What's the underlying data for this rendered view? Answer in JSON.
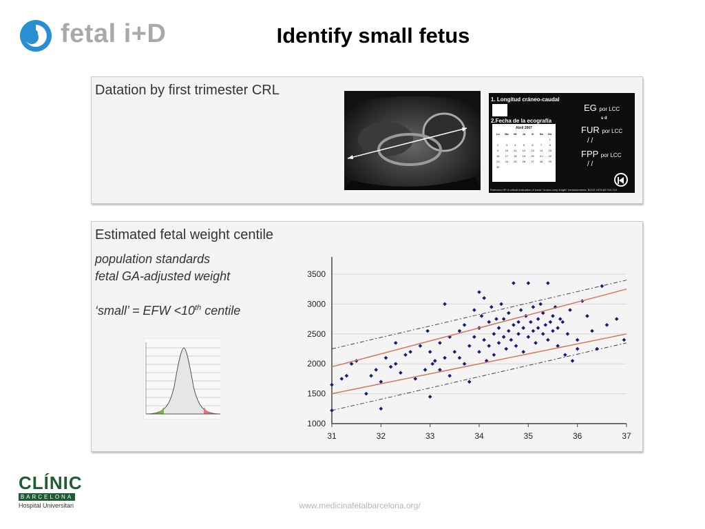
{
  "header": {
    "brand_text": "fetal i+D",
    "title": "Identify small fetus"
  },
  "panel1": {
    "heading": "Datation by first trimester CRL",
    "calculator": {
      "field1": "1. Longitud  cráneo-caudal",
      "field2": "2.Fecha de la ecografía",
      "calendar_month": "Abril 2007",
      "weekdays": [
        "Lu",
        "Ma",
        "Mi",
        "Ju",
        "Vi",
        "Sa",
        "Do"
      ],
      "days": [
        "",
        "",
        "",
        "",
        "",
        "",
        "1",
        "2",
        "3",
        "4",
        "5",
        "6",
        "7",
        "8",
        "9",
        "10",
        "11",
        "12",
        "13",
        "14",
        "15",
        "16",
        "17",
        "18",
        "19",
        "20",
        "21",
        "22",
        "23",
        "24",
        "25",
        "26",
        "27",
        "28",
        "29",
        "30"
      ],
      "eg_label": "EG",
      "eg_unit": "por LCC",
      "s_d": "s      d",
      "fur_label": "FUR",
      "fur_unit": "por LCC",
      "fur_value": "/     /",
      "fpp_label": "FPP",
      "fpp_unit": "por LCC",
      "fpp_value": "/     /",
      "reference": "Robinson HP. A critical evaluation of sonar \"crown-rump length\" measurements. BJOG 1975;82:702-710."
    }
  },
  "panel2": {
    "heading": "Estimated fetal weight centile",
    "line1": "population standards",
    "line2": "fetal GA-adjusted weight",
    "line3_prefix": "‘small’ = EFW <10",
    "line3_sup": "th",
    "line3_suffix": " centile"
  },
  "chart_data": {
    "type": "scatter",
    "xlim": [
      31,
      37
    ],
    "ylim": [
      1000,
      3500
    ],
    "x_ticks": [
      "31",
      "32",
      "33",
      "34",
      "35",
      "36",
      "37"
    ],
    "y_ticks": [
      "1000",
      "1500",
      "2000",
      "2500",
      "3000",
      "3500"
    ],
    "grid": "horizontal",
    "colors": {
      "points": "#1a1a7a",
      "centile_lines": "#d4785a",
      "prediction_bands": "#444444"
    },
    "centile_lines": [
      {
        "x": [
          31,
          37
        ],
        "y": [
          1500,
          2500
        ]
      },
      {
        "x": [
          31,
          37
        ],
        "y": [
          1950,
          3250
        ]
      }
    ],
    "prediction_bands": [
      {
        "x": [
          31,
          37
        ],
        "y": [
          1220,
          2350
        ]
      },
      {
        "x": [
          31,
          37
        ],
        "y": [
          2250,
          3400
        ]
      }
    ],
    "points": [
      [
        31.0,
        1220
      ],
      [
        31.0,
        1650
      ],
      [
        31.2,
        1750
      ],
      [
        31.3,
        1800
      ],
      [
        31.4,
        2000
      ],
      [
        31.5,
        2050
      ],
      [
        31.7,
        1500
      ],
      [
        31.8,
        1800
      ],
      [
        31.9,
        1900
      ],
      [
        32.0,
        1250
      ],
      [
        32.0,
        1700
      ],
      [
        32.1,
        2100
      ],
      [
        32.2,
        1950
      ],
      [
        32.3,
        2000
      ],
      [
        32.3,
        2350
      ],
      [
        32.4,
        1850
      ],
      [
        32.5,
        2150
      ],
      [
        32.6,
        2200
      ],
      [
        32.7,
        1750
      ],
      [
        32.8,
        2300
      ],
      [
        32.9,
        1900
      ],
      [
        32.95,
        2550
      ],
      [
        33.0,
        1450
      ],
      [
        33.0,
        2200
      ],
      [
        33.05,
        2000
      ],
      [
        33.1,
        2050
      ],
      [
        33.2,
        1900
      ],
      [
        33.2,
        2350
      ],
      [
        33.3,
        2100
      ],
      [
        33.3,
        3000
      ],
      [
        33.4,
        2450
      ],
      [
        33.4,
        1800
      ],
      [
        33.5,
        2200
      ],
      [
        33.6,
        2550
      ],
      [
        33.6,
        2100
      ],
      [
        33.7,
        2000
      ],
      [
        33.7,
        2650
      ],
      [
        33.8,
        2300
      ],
      [
        33.8,
        1700
      ],
      [
        33.9,
        2450
      ],
      [
        33.9,
        2900
      ],
      [
        34.0,
        3200
      ],
      [
        34.0,
        2200
      ],
      [
        34.0,
        2600
      ],
      [
        34.05,
        2800
      ],
      [
        34.1,
        2400
      ],
      [
        34.1,
        3100
      ],
      [
        34.15,
        2050
      ],
      [
        34.2,
        2700
      ],
      [
        34.2,
        2300
      ],
      [
        34.25,
        2950
      ],
      [
        34.3,
        2500
      ],
      [
        34.3,
        2150
      ],
      [
        34.35,
        2750
      ],
      [
        34.4,
        2600
      ],
      [
        34.4,
        2350
      ],
      [
        34.45,
        3000
      ],
      [
        34.5,
        2450
      ],
      [
        34.5,
        2750
      ],
      [
        34.55,
        2250
      ],
      [
        34.6,
        2550
      ],
      [
        34.6,
        2850
      ],
      [
        34.65,
        2400
      ],
      [
        34.7,
        2650
      ],
      [
        34.7,
        3350
      ],
      [
        34.75,
        2300
      ],
      [
        34.8,
        2700
      ],
      [
        34.8,
        2500
      ],
      [
        34.85,
        2900
      ],
      [
        34.9,
        2600
      ],
      [
        34.9,
        2200
      ],
      [
        34.95,
        2800
      ],
      [
        35.0,
        3350
      ],
      [
        35.0,
        2450
      ],
      [
        35.05,
        2700
      ],
      [
        35.1,
        2550
      ],
      [
        35.1,
        2950
      ],
      [
        35.15,
        2350
      ],
      [
        35.2,
        2750
      ],
      [
        35.2,
        2600
      ],
      [
        35.25,
        3000
      ],
      [
        35.3,
        2500
      ],
      [
        35.3,
        2850
      ],
      [
        35.35,
        2650
      ],
      [
        35.4,
        3350
      ],
      [
        35.4,
        2400
      ],
      [
        35.45,
        2700
      ],
      [
        35.5,
        2800
      ],
      [
        35.5,
        2550
      ],
      [
        35.55,
        2950
      ],
      [
        35.6,
        2600
      ],
      [
        35.6,
        2300
      ],
      [
        35.65,
        2750
      ],
      [
        35.7,
        2700
      ],
      [
        35.75,
        2150
      ],
      [
        35.8,
        2500
      ],
      [
        35.85,
        2900
      ],
      [
        35.9,
        2050
      ],
      [
        36.0,
        2400
      ],
      [
        36.0,
        2250
      ],
      [
        36.1,
        3050
      ],
      [
        36.2,
        2800
      ],
      [
        36.3,
        2550
      ],
      [
        36.4,
        2250
      ],
      [
        36.5,
        3300
      ],
      [
        36.6,
        2650
      ],
      [
        36.8,
        2750
      ],
      [
        36.95,
        2400
      ]
    ]
  },
  "footer": {
    "hospital_name": "CLÍNIC",
    "hospital_city": "BARCELONA",
    "hospital_sub": "Hospital Universitari",
    "url": "www.medicinafetalbarcelona.org/"
  }
}
